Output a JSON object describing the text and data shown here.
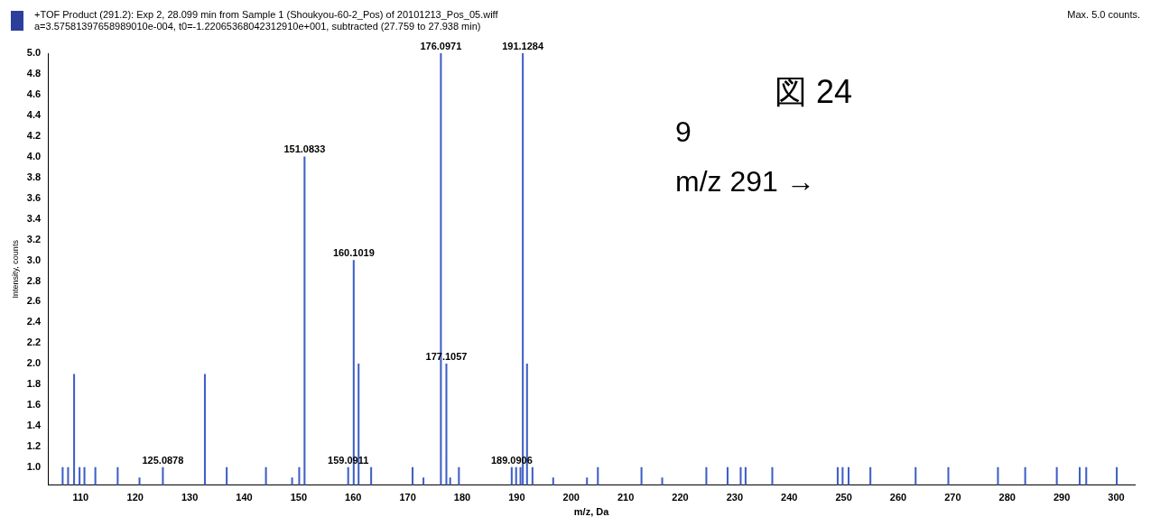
{
  "chart_data": {
    "type": "bar",
    "title": "+TOF Product (291.2): Exp 2, 28.099 min from Sample 1 (Shoukyou-60-2_Pos) of 20101213_Pos_05.wiff",
    "subtitle": "a=3.57581397658989010e-004, t0=-1.22065368042312910e+001, subtracted (27.759 to 27.938 min)",
    "xlabel": "m/z, Da",
    "ylabel": "Intensity, counts",
    "x": [
      106.7,
      107.7,
      108.8,
      109.8,
      110.7,
      112.7,
      116.8,
      120.8,
      125.0878,
      132.8,
      136.8,
      144.0,
      148.8,
      150.1,
      151.0833,
      159.0911,
      160.1019,
      161.0,
      163.3,
      170.9,
      172.9,
      176.0971,
      177.1057,
      177.8,
      179.4,
      189.0906,
      189.9,
      190.7,
      191.1284,
      191.9,
      192.9,
      196.7,
      202.9,
      204.9,
      212.9,
      216.7,
      224.8,
      228.7,
      231.1,
      232.0,
      236.9,
      248.9,
      249.8,
      250.9,
      254.9,
      263.2,
      269.2,
      278.3,
      283.3,
      289.1,
      293.3,
      294.5,
      300.1
    ],
    "series": [
      {
        "color": "#3f5fc8",
        "values": [
          1.0,
          1.0,
          1.9,
          1.0,
          1.0,
          1.0,
          1.0,
          0.9,
          1.0,
          1.9,
          1.0,
          1.0,
          0.9,
          1.0,
          4.0,
          1.0,
          3.0,
          2.0,
          1.0,
          1.0,
          0.9,
          5.0,
          2.0,
          0.9,
          1.0,
          1.0,
          1.0,
          1.0,
          5.0,
          2.0,
          1.0,
          0.9,
          0.9,
          1.0,
          1.0,
          0.9,
          1.0,
          1.0,
          1.0,
          1.0,
          1.0,
          1.0,
          1.0,
          1.0,
          1.0,
          1.0,
          1.0,
          1.0,
          1.0,
          1.0,
          1.0,
          1.0,
          1.0
        ]
      }
    ],
    "xlim": [
      104,
      303.4
    ],
    "xticks": [
      110,
      120,
      130,
      140,
      150,
      160,
      170,
      180,
      190,
      200,
      210,
      220,
      230,
      240,
      250,
      260,
      270,
      280,
      290,
      300
    ],
    "ylim": [
      0.83,
      5.0
    ],
    "yticks": [
      {
        "value": 1,
        "label": "1.0"
      },
      1.2,
      1.4,
      1.6,
      1.8,
      {
        "value": 2,
        "label": "2.0"
      },
      2.2,
      2.4,
      2.6,
      2.8,
      {
        "value": 3,
        "label": "3.0"
      },
      3.2,
      3.4,
      3.6,
      3.8,
      {
        "value": 4,
        "label": "4.0"
      },
      4.2,
      4.4,
      4.6,
      4.8,
      {
        "value": 5,
        "label": "5.0"
      }
    ],
    "grid": false,
    "legend": false,
    "annotations": [
      "Max. 5.0 counts.",
      "図 24",
      "9",
      "m/z 291 →",
      {
        "text": "125.0878",
        "x": 125.0878,
        "y": 1.0
      },
      {
        "text": "151.0833",
        "x": 151.0833,
        "y": 4.0
      },
      {
        "text": "159.0911",
        "x": 159.0911,
        "y": 1.0
      },
      {
        "text": "160.1019",
        "x": 160.1019,
        "y": 3.0
      },
      {
        "text": "176.0971",
        "x": 176.0971,
        "y": 5.0
      },
      {
        "text": "177.1057",
        "x": 177.1057,
        "y": 2.0
      },
      {
        "text": "189.0906",
        "x": 189.0906,
        "y": 1.0
      },
      {
        "text": "191.1284",
        "x": 191.1284,
        "y": 5.0
      }
    ]
  }
}
